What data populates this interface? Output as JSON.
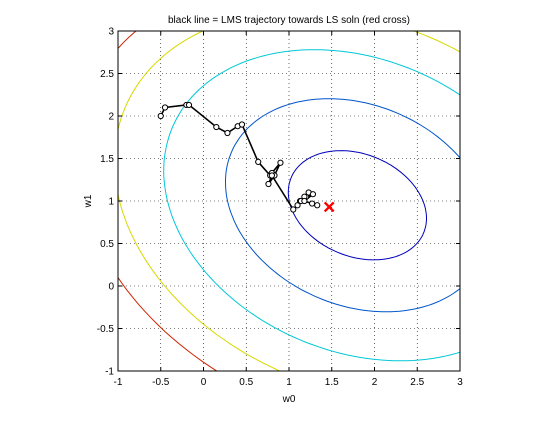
{
  "chart_data": {
    "type": "line",
    "title": "black line = LMS trajectory towards LS soln (red cross)",
    "xlabel": "w0",
    "ylabel": "w1",
    "xlim": [
      -1,
      3
    ],
    "ylim": [
      -1,
      3
    ],
    "grid": true,
    "x_ticks": [
      "-1",
      "-0.5",
      "0",
      "0.5",
      "1",
      "1.5",
      "2",
      "2.5",
      "3"
    ],
    "y_ticks": [
      "-1",
      "-0.5",
      "0",
      "0.5",
      "1",
      "1.5",
      "2",
      "2.5",
      "3"
    ],
    "contour_center": [
      1.8,
      0.95
    ],
    "contours": [
      {
        "level": 1,
        "color": "#0000bb",
        "semi_axes": [
          0.84,
          0.6
        ],
        "angle_deg": -23
      },
      {
        "level": 2,
        "color": "#0055cc",
        "semi_axes": [
          1.6,
          1.18
        ],
        "angle_deg": -23
      },
      {
        "level": 3,
        "color": "#00c8d8",
        "semi_axes": [
          2.35,
          1.72
        ],
        "angle_deg": -23
      },
      {
        "level": 4,
        "color": "#d8d800",
        "semi_axes": [
          2.95,
          2.15
        ],
        "angle_deg": -23
      },
      {
        "level": 5,
        "color": "#cc2200",
        "semi_axes": [
          3.4,
          2.5
        ],
        "angle_deg": -23
      }
    ],
    "series": [
      {
        "color": "#000000",
        "marker": "circle",
        "x": [
          -0.5,
          -0.45,
          -0.2,
          -0.17,
          0.15,
          0.28,
          0.4,
          0.45,
          0.64,
          0.78,
          0.8,
          0.9,
          0.83,
          0.76,
          0.8,
          1.05,
          1.1,
          1.13,
          1.2,
          1.23,
          1.14,
          1.18,
          1.28,
          1.18,
          1.27,
          1.33
        ],
        "y": [
          2.0,
          2.1,
          2.13,
          2.13,
          1.87,
          1.8,
          1.88,
          1.9,
          1.46,
          1.3,
          1.33,
          1.45,
          1.3,
          1.2,
          1.3,
          0.9,
          0.95,
          1.0,
          1.05,
          1.1,
          1.0,
          1.05,
          1.08,
          1.0,
          0.97,
          0.95
        ]
      }
    ],
    "ls_solution": {
      "x": 1.47,
      "y": 0.93,
      "color": "#ff0000",
      "marker": "cross"
    }
  }
}
